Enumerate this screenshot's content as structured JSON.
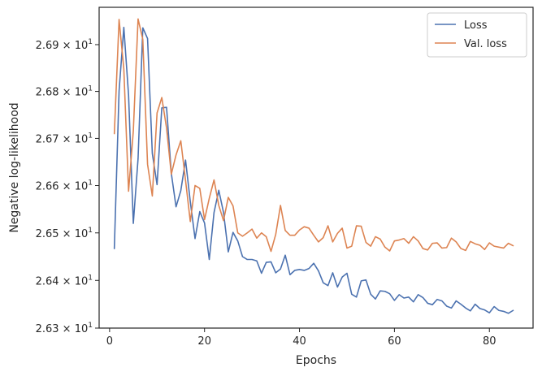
{
  "chart_data": {
    "type": "line",
    "xlabel": "Epochs",
    "ylabel": "Negative log-likelihood",
    "x_range": [
      -2.2,
      89.2
    ],
    "y_range": [
      26.3,
      26.98
    ],
    "y_log_scale": true,
    "grid": false,
    "legend_position": "top-right",
    "x_ticks": [
      {
        "value": 0,
        "label": "0"
      },
      {
        "value": 20,
        "label": "20"
      },
      {
        "value": 40,
        "label": "40"
      },
      {
        "value": 60,
        "label": "60"
      },
      {
        "value": 80,
        "label": "80"
      }
    ],
    "y_ticks": [
      {
        "value": 26.3,
        "mantissa": "2.63",
        "base": "10",
        "exp": "1"
      },
      {
        "value": 26.4,
        "mantissa": "2.64",
        "base": "10",
        "exp": "1"
      },
      {
        "value": 26.5,
        "mantissa": "2.65",
        "base": "10",
        "exp": "1"
      },
      {
        "value": 26.6,
        "mantissa": "2.66",
        "base": "10",
        "exp": "1"
      },
      {
        "value": 26.7,
        "mantissa": "2.67",
        "base": "10",
        "exp": "1"
      },
      {
        "value": 26.8,
        "mantissa": "2.68",
        "base": "10",
        "exp": "1"
      },
      {
        "value": 26.9,
        "mantissa": "2.69",
        "base": "10",
        "exp": "1"
      }
    ],
    "x": [
      1,
      2,
      3,
      4,
      5,
      6,
      7,
      8,
      9,
      10,
      11,
      12,
      13,
      14,
      15,
      16,
      17,
      18,
      19,
      20,
      21,
      22,
      23,
      24,
      25,
      26,
      27,
      28,
      29,
      30,
      31,
      32,
      33,
      34,
      35,
      36,
      37,
      38,
      39,
      40,
      41,
      42,
      43,
      44,
      45,
      46,
      47,
      48,
      49,
      50,
      51,
      52,
      53,
      54,
      55,
      56,
      57,
      58,
      59,
      60,
      61,
      62,
      63,
      64,
      65,
      66,
      67,
      68,
      69,
      70,
      71,
      72,
      73,
      74,
      75,
      76,
      77,
      78,
      79,
      80,
      81,
      82,
      83,
      84,
      85
    ],
    "series": [
      {
        "name": "Loss",
        "color": "#4c72b0",
        "values": [
          26.467,
          26.801,
          26.937,
          26.792,
          26.52,
          26.657,
          26.936,
          26.913,
          26.668,
          26.602,
          26.765,
          26.766,
          26.626,
          26.555,
          26.589,
          26.654,
          26.566,
          26.488,
          26.545,
          26.521,
          26.444,
          26.543,
          26.59,
          26.543,
          26.46,
          26.501,
          26.483,
          26.45,
          26.444,
          26.444,
          26.441,
          26.415,
          26.438,
          26.439,
          26.416,
          26.424,
          26.453,
          26.412,
          26.421,
          26.423,
          26.421,
          26.425,
          26.436,
          26.42,
          26.395,
          26.389,
          26.416,
          26.386,
          26.407,
          26.415,
          26.371,
          26.365,
          26.399,
          26.401,
          26.371,
          26.361,
          26.378,
          26.377,
          26.372,
          26.358,
          26.37,
          26.363,
          26.365,
          26.355,
          26.37,
          26.364,
          26.352,
          26.349,
          26.36,
          26.357,
          26.346,
          26.342,
          26.357,
          26.35,
          26.342,
          26.336,
          26.35,
          26.341,
          26.338,
          26.332,
          26.345,
          26.337,
          26.335,
          26.331,
          26.337
        ]
      },
      {
        "name": "Val. loss",
        "color": "#dd8452",
        "values": [
          26.71,
          26.954,
          26.848,
          26.588,
          26.716,
          26.955,
          26.911,
          26.645,
          26.578,
          26.754,
          26.787,
          26.722,
          26.624,
          26.665,
          26.695,
          26.611,
          26.524,
          26.6,
          26.594,
          26.528,
          26.573,
          26.612,
          26.558,
          26.526,
          26.575,
          26.557,
          26.5,
          26.493,
          26.5,
          26.508,
          26.489,
          26.5,
          26.492,
          26.461,
          26.497,
          26.558,
          26.505,
          26.495,
          26.495,
          26.506,
          26.513,
          26.51,
          26.495,
          26.481,
          26.49,
          26.515,
          26.481,
          26.499,
          26.51,
          26.468,
          26.472,
          26.515,
          26.514,
          26.48,
          26.472,
          26.492,
          26.487,
          26.47,
          26.462,
          26.483,
          26.485,
          26.488,
          26.478,
          26.492,
          26.483,
          26.467,
          26.464,
          26.478,
          26.479,
          26.468,
          26.469,
          26.489,
          26.481,
          26.467,
          26.463,
          26.482,
          26.477,
          26.474,
          26.465,
          26.479,
          26.472,
          26.47,
          26.468,
          26.478,
          26.473
        ]
      }
    ]
  }
}
